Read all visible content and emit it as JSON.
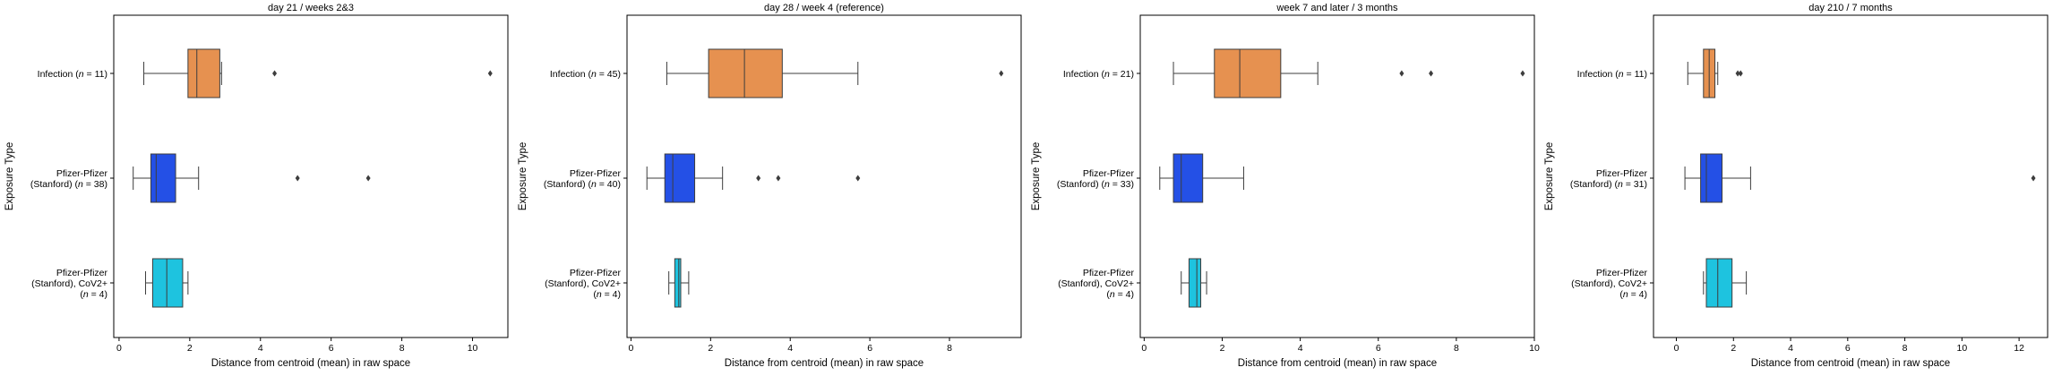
{
  "chart_data": [
    {
      "type": "box",
      "title": "day 21 / weeks 2&3",
      "xlabel": "Distance from centroid (mean) in raw space",
      "ylabel": "Exposure Type",
      "xlim": [
        -0.15,
        11.0
      ],
      "xticks": [
        "0",
        "2",
        "4",
        "6",
        "8",
        "10"
      ],
      "tick_values": [
        0,
        2,
        4,
        6,
        8,
        10
      ],
      "categories": [
        {
          "lines": [
            "Infection (n = 11)"
          ],
          "color": "#e69150",
          "box": {
            "min": 0.7,
            "q1": 1.95,
            "median": 2.2,
            "q3": 2.85,
            "max": 2.9
          },
          "outliers": [
            4.4,
            10.5
          ]
        },
        {
          "lines": [
            "Pfizer-Pfizer",
            "(Stanford) (n = 38)"
          ],
          "color": "#2450e6",
          "box": {
            "min": 0.4,
            "q1": 0.9,
            "median": 1.05,
            "q3": 1.6,
            "max": 2.25
          },
          "outliers": [
            5.05,
            7.05
          ]
        },
        {
          "lines": [
            "Pfizer-Pfizer",
            "(Stanford), CoV2+",
            "(n = 4)"
          ],
          "color": "#1ec3df",
          "box": {
            "min": 0.75,
            "q1": 0.95,
            "median": 1.35,
            "q3": 1.8,
            "max": 1.95
          },
          "outliers": []
        }
      ]
    },
    {
      "type": "box",
      "title": "day 28 / week 4 (reference)",
      "xlabel": "Distance from centroid (mean) in raw space",
      "ylabel": "Exposure Type",
      "xlim": [
        -0.1,
        9.8
      ],
      "xticks": [
        "0",
        "2",
        "4",
        "6",
        "8"
      ],
      "tick_values": [
        0,
        2,
        4,
        6,
        8
      ],
      "categories": [
        {
          "lines": [
            "Infection (n = 45)"
          ],
          "color": "#e69150",
          "box": {
            "min": 0.9,
            "q1": 1.95,
            "median": 2.85,
            "q3": 3.8,
            "max": 5.7
          },
          "outliers": [
            9.3
          ]
        },
        {
          "lines": [
            "Pfizer-Pfizer",
            "(Stanford) (n = 40)"
          ],
          "color": "#2450e6",
          "box": {
            "min": 0.4,
            "q1": 0.85,
            "median": 1.05,
            "q3": 1.6,
            "max": 2.3
          },
          "outliers": [
            3.2,
            3.7,
            5.7
          ]
        },
        {
          "lines": [
            "Pfizer-Pfizer",
            "(Stanford), CoV2+",
            "(n = 4)"
          ],
          "color": "#1ec3df",
          "box": {
            "min": 0.95,
            "q1": 1.1,
            "median": 1.2,
            "q3": 1.25,
            "max": 1.45
          },
          "outliers": []
        }
      ]
    },
    {
      "type": "box",
      "title": "week 7 and later / 3 months",
      "xlabel": "Distance from centroid (mean) in raw space",
      "ylabel": "Exposure Type",
      "xlim": [
        -0.1,
        10.0
      ],
      "xticks": [
        "0",
        "2",
        "4",
        "6",
        "8",
        "10"
      ],
      "tick_values": [
        0,
        2,
        4,
        6,
        8,
        10
      ],
      "categories": [
        {
          "lines": [
            "Infection (n = 21)"
          ],
          "color": "#e69150",
          "box": {
            "min": 0.75,
            "q1": 1.8,
            "median": 2.45,
            "q3": 3.5,
            "max": 4.45
          },
          "outliers": [
            6.6,
            7.35,
            9.7
          ]
        },
        {
          "lines": [
            "Pfizer-Pfizer",
            "(Stanford) (n = 33)"
          ],
          "color": "#2450e6",
          "box": {
            "min": 0.4,
            "q1": 0.75,
            "median": 0.95,
            "q3": 1.5,
            "max": 2.55
          },
          "outliers": []
        },
        {
          "lines": [
            "Pfizer-Pfizer",
            "(Stanford), CoV2+",
            "(n = 4)"
          ],
          "color": "#1ec3df",
          "box": {
            "min": 0.95,
            "q1": 1.15,
            "median": 1.35,
            "q3": 1.45,
            "max": 1.6
          },
          "outliers": []
        }
      ]
    },
    {
      "type": "box",
      "title": "day 210 / 7 months",
      "xlabel": "Distance from centroid (mean) in raw space",
      "ylabel": "Exposure Type",
      "xlim": [
        -0.8,
        13.0
      ],
      "xticks": [
        "0",
        "2",
        "4",
        "6",
        "8",
        "10",
        "12"
      ],
      "tick_values": [
        0,
        2,
        4,
        6,
        8,
        10,
        12
      ],
      "categories": [
        {
          "lines": [
            "Infection (n = 11)"
          ],
          "color": "#e69150",
          "box": {
            "min": 0.4,
            "q1": 0.95,
            "median": 1.15,
            "q3": 1.35,
            "max": 1.45
          },
          "outliers": [
            2.15,
            2.25
          ]
        },
        {
          "lines": [
            "Pfizer-Pfizer",
            "(Stanford) (n = 31)"
          ],
          "color": "#2450e6",
          "box": {
            "min": 0.3,
            "q1": 0.85,
            "median": 1.05,
            "q3": 1.6,
            "max": 2.6
          },
          "outliers": [
            12.5
          ]
        },
        {
          "lines": [
            "Pfizer-Pfizer",
            "(Stanford), CoV2+",
            "(n = 4)"
          ],
          "color": "#1ec3df",
          "box": {
            "min": 0.95,
            "q1": 1.05,
            "median": 1.45,
            "q3": 1.95,
            "max": 2.45
          },
          "outliers": []
        }
      ]
    }
  ]
}
